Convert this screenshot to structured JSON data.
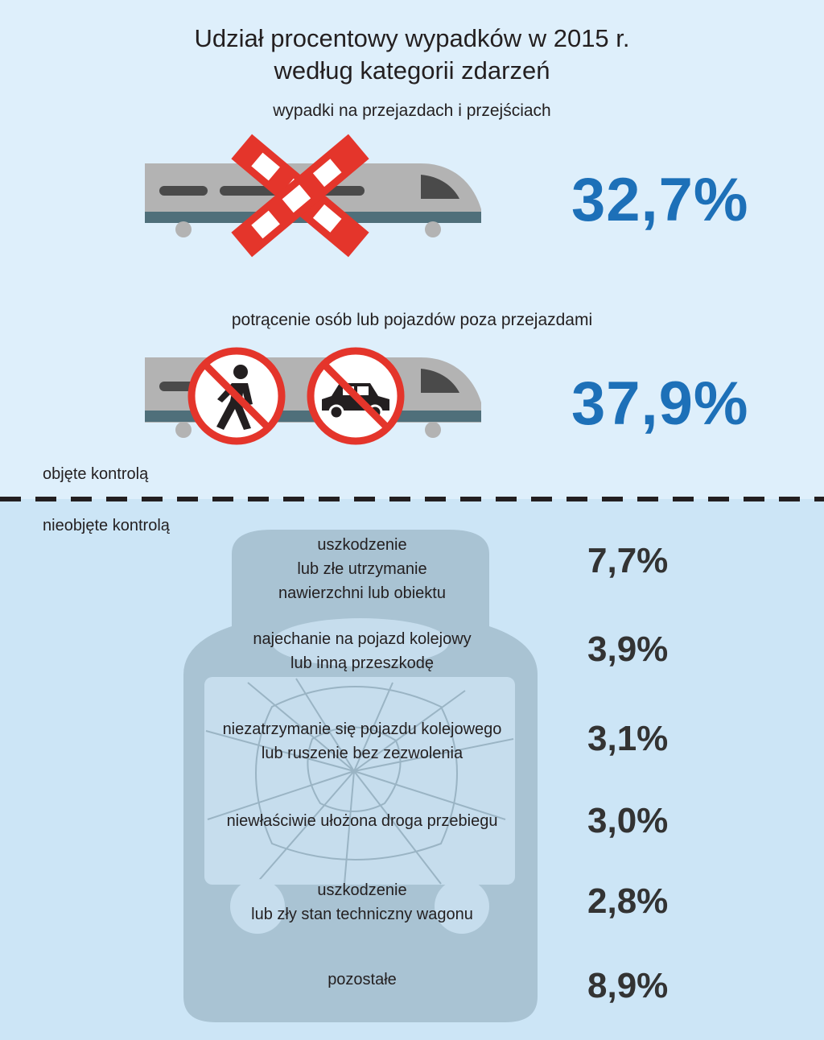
{
  "title_line1": "Udział procentowy wypadków w 2015 r.",
  "title_line2": "według kategorii zdarzeń",
  "colors": {
    "top_background": "#deeffb",
    "bottom_background": "#cce5f6",
    "accent_blue": "#1d70b8",
    "dark_text": "#333333",
    "prohibition_red": "#e4352b",
    "train_grey": "#b3b3b3",
    "train_teal": "#4f6f7a"
  },
  "controlled": {
    "label": "objęte kontrolą",
    "items": [
      {
        "label": "wypadki na przejazdach i przejściach",
        "value": "32,7%",
        "icon": "railway-crossing-icon"
      },
      {
        "label": "potrącenie osób lub pojazdów poza przejazdami",
        "value": "37,9%",
        "icon": "no-pedestrian-no-car-icon"
      }
    ]
  },
  "uncontrolled": {
    "label": "nieobjęte kontrolą",
    "items": [
      {
        "line1": "uszkodzenie",
        "line2": "lub złe utrzymanie",
        "line3": "nawierzchni lub obiektu",
        "value": "7,7%"
      },
      {
        "line1": "najechanie na pojazd kolejowy",
        "line2": "lub inną przeszkodę",
        "value": "3,9%"
      },
      {
        "line1": "niezatrzymanie się pojazdu kolejowego",
        "line2": "lub ruszenie bez zezwolenia",
        "value": "3,1%"
      },
      {
        "line1": "niewłaściwie ułożona droga przebiegu",
        "value": "3,0%"
      },
      {
        "line1": "uszkodzenie",
        "line2": "lub zły stan techniczny wagonu",
        "value": "2,8%"
      },
      {
        "line1": "pozostałe",
        "value": "8,9%"
      }
    ]
  }
}
